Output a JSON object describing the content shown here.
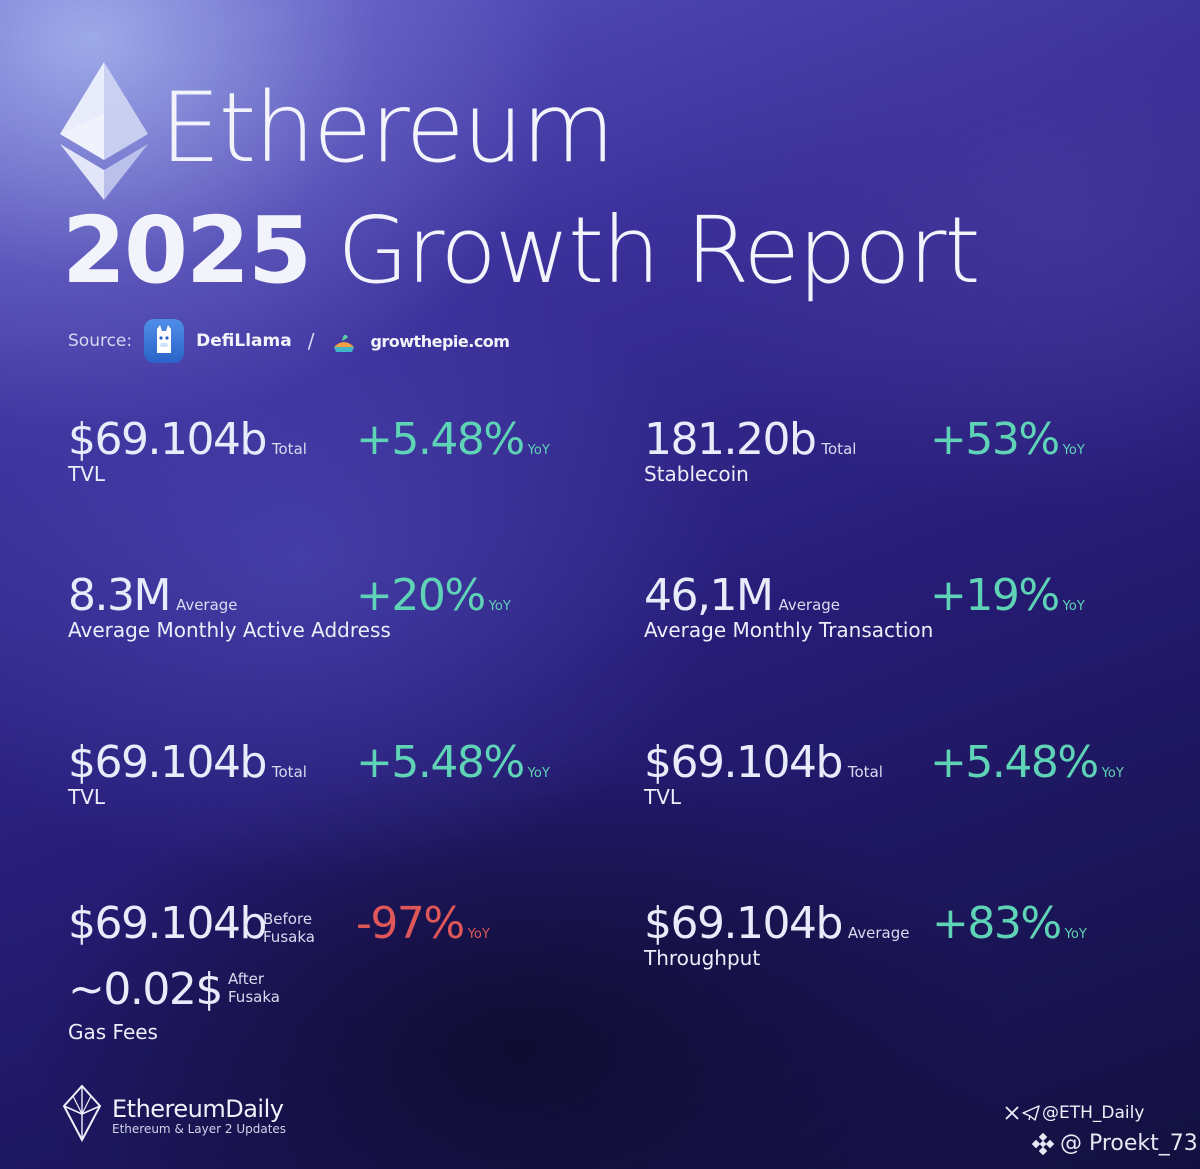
{
  "header": {
    "title": "Ethereum",
    "year": "2025",
    "subtitle": "Growth Report"
  },
  "source": {
    "label": "Source:",
    "providers": [
      "DefiLlama",
      "growthepie.com"
    ],
    "separator": "/"
  },
  "metrics": [
    {
      "value": "$69.104b",
      "suffix": "Total",
      "change": "+5.48%",
      "change_unit": "YoY",
      "label": "TVL"
    },
    {
      "value": "181.20b",
      "suffix": "Total",
      "change": "+53%",
      "change_unit": "YoY",
      "label": "Stablecoin"
    },
    {
      "value": "8.3M",
      "suffix": "Average",
      "change": "+20%",
      "change_unit": "YoY",
      "label": "Average Monthly Active Address"
    },
    {
      "value": "46,1M",
      "suffix": "Average",
      "change": "+19%",
      "change_unit": "YoY",
      "label": "Average Monthly Transaction"
    },
    {
      "value": "$69.104b",
      "suffix": "Total",
      "change": "+5.48%",
      "change_unit": "YoY",
      "label": "TVL"
    },
    {
      "value": "$69.104b",
      "suffix": "Total",
      "change": "+5.48%",
      "change_unit": "YoY",
      "label": "TVL"
    },
    {
      "value": "$69.104b",
      "suffix_line1": "Before",
      "suffix_line2": "Fusaka",
      "change": "-97%",
      "change_unit": "YoY",
      "value2": "~0.02$",
      "suffix2_line1": "After",
      "suffix2_line2": "Fusaka",
      "label": "Gas Fees"
    },
    {
      "value": "$69.104b",
      "suffix": "Average",
      "change": "+83%",
      "change_unit": "YoY",
      "label": "Throughput"
    }
  ],
  "footer": {
    "brand": "EthereumDaily",
    "tagline": "Ethereum & Layer 2 Updates",
    "social_handle": "@ETH_Daily",
    "watermark": "@ Proekt_73"
  },
  "colors": {
    "positive": "#5fd3b6",
    "negative": "#e0575a"
  },
  "icons": [
    "ethereum-logo-icon",
    "defillama-icon",
    "growthepie-icon",
    "x-icon",
    "telegram-icon",
    "binance-icon"
  ]
}
